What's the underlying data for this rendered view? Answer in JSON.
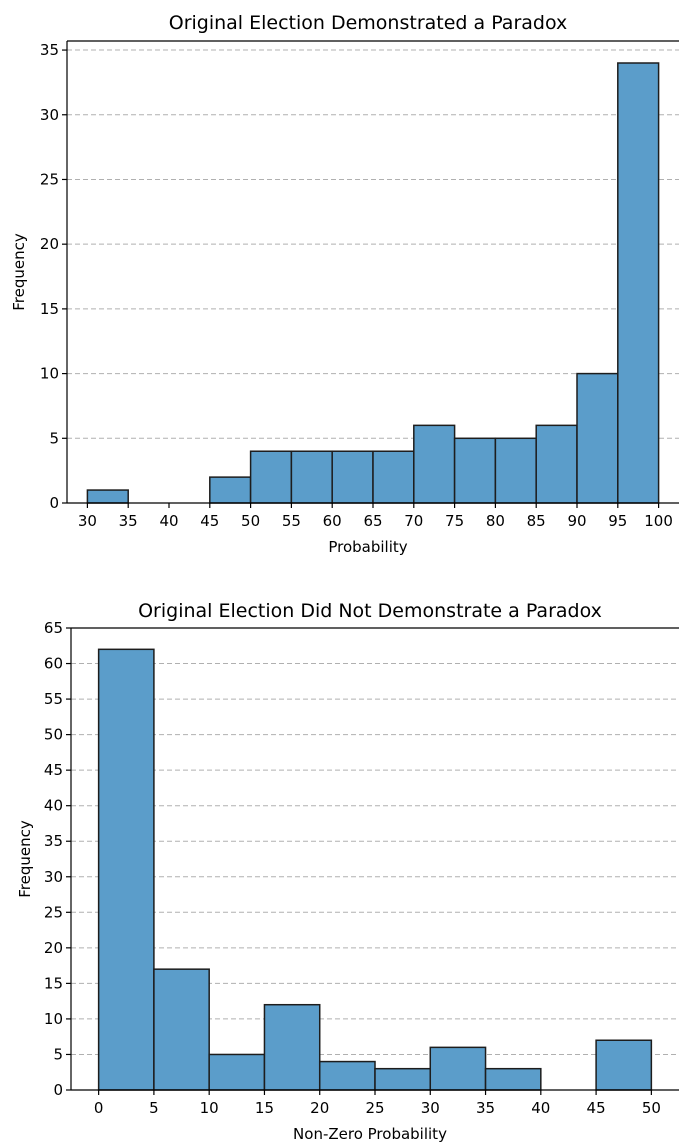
{
  "chart_data": [
    {
      "type": "bar",
      "title": "Original Election Demonstrated a Paradox",
      "xlabel": "Probability",
      "ylabel": "Frequency",
      "xlim": [
        27.5,
        102.5
      ],
      "ylim": [
        0,
        35.7
      ],
      "xticks": [
        30,
        35,
        40,
        45,
        50,
        55,
        60,
        65,
        70,
        75,
        80,
        85,
        90,
        95,
        100
      ],
      "yticks": [
        0,
        5,
        10,
        15,
        20,
        25,
        30,
        35
      ],
      "bin_width": 5,
      "bin_edges": [
        30,
        35,
        40,
        45,
        50,
        55,
        60,
        65,
        70,
        75,
        80,
        85,
        90,
        95,
        100
      ],
      "values": [
        1,
        0,
        0,
        2,
        4,
        4,
        4,
        4,
        6,
        5,
        5,
        6,
        10,
        34
      ],
      "grid": "y-dashed",
      "bar_color": "#5b9dca"
    },
    {
      "type": "bar",
      "title": "Original Election Did Not Demonstrate a Paradox",
      "xlabel": "Non-Zero Probability",
      "ylabel": "Frequency",
      "xlim": [
        -2.5,
        52.5
      ],
      "ylim": [
        0,
        65
      ],
      "xticks": [
        0,
        5,
        10,
        15,
        20,
        25,
        30,
        35,
        40,
        45,
        50
      ],
      "yticks": [
        0,
        5,
        10,
        15,
        20,
        25,
        30,
        35,
        40,
        45,
        50,
        55,
        60,
        65
      ],
      "bin_width": 5,
      "bin_edges": [
        0,
        5,
        10,
        15,
        20,
        25,
        30,
        35,
        40,
        45,
        50
      ],
      "values": [
        62,
        17,
        5,
        12,
        4,
        3,
        6,
        3,
        0,
        7
      ],
      "grid": "y-dashed",
      "bar_color": "#5b9dca"
    }
  ]
}
